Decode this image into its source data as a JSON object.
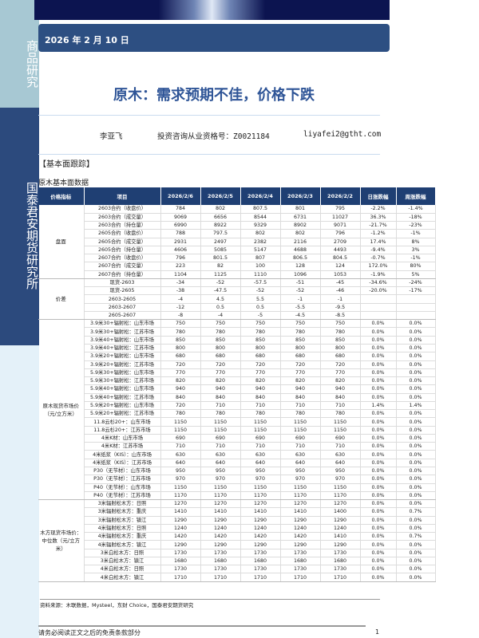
{
  "sidebar": {
    "top_label": "商品研究",
    "institute_label": "国泰君安期货研究所"
  },
  "header": {
    "date": "2026 年 2 月 10 日",
    "title": "原木：需求预期不佳，价格下跌"
  },
  "author": {
    "name": "李亚飞",
    "qualification": "投资咨询从业资格号：Z0021184",
    "email": "liyafei2@gtht.com"
  },
  "section_title": "【基本面跟踪】",
  "table_title": "原木基本面数据",
  "colors": {
    "header_bg": "#1f3f73",
    "title": "#2f5597",
    "sidebar": "#2c4a7d"
  },
  "table": {
    "headers": [
      "价格指标",
      "项目",
      "2026/2/6",
      "2026/2/5",
      "2026/2/4",
      "2026/2/3",
      "2026/2/2",
      "日涨跌幅",
      "周涨跌幅"
    ],
    "groups": [
      {
        "category": "盘面",
        "rows": [
          [
            "2603合约（收盘价）",
            "784",
            "802",
            "807.5",
            "801",
            "795",
            "-2.2%",
            "-1.4%"
          ],
          [
            "2603合约（成交量）",
            "9069",
            "6656",
            "8544",
            "6731",
            "11027",
            "36.3%",
            "-18%"
          ],
          [
            "2603合约（持仓量）",
            "6990",
            "8922",
            "9329",
            "8902",
            "9071",
            "-21.7%",
            "-23%"
          ],
          [
            "2605合约（收盘价）",
            "788",
            "797.5",
            "802",
            "802",
            "796",
            "-1.2%",
            "-1%"
          ],
          [
            "2605合约（成交量）",
            "2931",
            "2497",
            "2382",
            "2116",
            "2709",
            "17.4%",
            "8%"
          ],
          [
            "2605合约（持仓量）",
            "4606",
            "5085",
            "5147",
            "4688",
            "4493",
            "-9.4%",
            "3%"
          ],
          [
            "2607合约（收盘价）",
            "796",
            "801.5",
            "807",
            "806.5",
            "804.5",
            "-0.7%",
            "-1%"
          ],
          [
            "2607合约（成交量）",
            "223",
            "82",
            "100",
            "128",
            "124",
            "172.0%",
            "80%"
          ],
          [
            "2607合约（持仓量）",
            "1104",
            "1125",
            "1110",
            "1096",
            "1053",
            "-1.9%",
            "5%"
          ]
        ]
      },
      {
        "category": "价差",
        "rows": [
          [
            "现货-2603",
            "-34",
            "-52",
            "-57.5",
            "-51",
            "-45",
            "-34.6%",
            "-24%"
          ],
          [
            "现货-2605",
            "-38",
            "-47.5",
            "-52",
            "-52",
            "-46",
            "-20.0%",
            "-17%"
          ],
          [
            "2603-2605",
            "-4",
            "4.5",
            "5.5",
            "-1",
            "-1",
            "",
            ""
          ],
          [
            "2603-2607",
            "-12",
            "0.5",
            "0.5",
            "-5.5",
            "-9.5",
            "",
            ""
          ],
          [
            "2605-2607",
            "-8",
            "-4",
            "-5",
            "-4.5",
            "-8.5",
            "",
            ""
          ]
        ]
      },
      {
        "category": "原木现货市场价（元/立方米）",
        "rows": [
          [
            "3.9米30+辐射松：山东市场",
            "750",
            "750",
            "750",
            "750",
            "750",
            "0.0%",
            "0.0%"
          ],
          [
            "3.9米30+辐射松：江苏市场",
            "780",
            "780",
            "780",
            "780",
            "780",
            "0.0%",
            "0.0%"
          ],
          [
            "3.9米40+辐射松：山东市场",
            "850",
            "850",
            "850",
            "850",
            "850",
            "0.0%",
            "0.0%"
          ],
          [
            "3.9米40+辐射松：江苏市场",
            "800",
            "800",
            "800",
            "800",
            "800",
            "0.0%",
            "0.0%"
          ],
          [
            "3.9米20+辐射松：山东市场",
            "680",
            "680",
            "680",
            "680",
            "680",
            "0.0%",
            "0.0%"
          ],
          [
            "3.9米20+辐射松：江苏市场",
            "720",
            "720",
            "720",
            "720",
            "720",
            "0.0%",
            "0.0%"
          ],
          [
            "5.9米30+辐射松：山东市场",
            "770",
            "770",
            "770",
            "770",
            "770",
            "0.0%",
            "0.0%"
          ],
          [
            "5.9米30+辐射松：江苏市场",
            "820",
            "820",
            "820",
            "820",
            "820",
            "0.0%",
            "0.0%"
          ],
          [
            "5.9米40+辐射松：山东市场",
            "940",
            "940",
            "940",
            "940",
            "940",
            "0.0%",
            "0.0%"
          ],
          [
            "5.9米40+辐射松：江苏市场",
            "840",
            "840",
            "840",
            "840",
            "840",
            "0.0%",
            "0.0%"
          ],
          [
            "5.9米20+辐射松：山东市场",
            "720",
            "710",
            "710",
            "710",
            "710",
            "1.4%",
            "1.4%"
          ],
          [
            "5.9米20+辐射松：江苏市场",
            "780",
            "780",
            "780",
            "780",
            "780",
            "0.0%",
            "0.0%"
          ],
          [
            "11.8云杉20+：山东市场",
            "1150",
            "1150",
            "1150",
            "1150",
            "1150",
            "0.0%",
            "0.0%"
          ],
          [
            "11.8云杉20+：江苏市场",
            "1150",
            "1150",
            "1150",
            "1150",
            "1150",
            "0.0%",
            "0.0%"
          ],
          [
            "4米K材：山东市场",
            "690",
            "690",
            "690",
            "690",
            "690",
            "0.0%",
            "0.0%"
          ],
          [
            "4米K材：江苏市场",
            "710",
            "710",
            "710",
            "710",
            "710",
            "0.0%",
            "0.0%"
          ],
          [
            "4米纸浆（KIS）：山东市场",
            "630",
            "630",
            "630",
            "630",
            "630",
            "0.0%",
            "0.0%"
          ],
          [
            "4米纸浆（KIS）：江苏市场",
            "640",
            "640",
            "640",
            "640",
            "640",
            "0.0%",
            "0.0%"
          ],
          [
            "P30（无节材）：山东市场",
            "950",
            "950",
            "950",
            "950",
            "950",
            "0.0%",
            "0.0%"
          ],
          [
            "P30（无节材）：江苏市场",
            "970",
            "970",
            "970",
            "970",
            "970",
            "0.0%",
            "0.0%"
          ],
          [
            "P40（无节材）：山东市场",
            "1150",
            "1150",
            "1150",
            "1150",
            "1150",
            "0.0%",
            "0.0%"
          ],
          [
            "P40（无节材）：江苏市场",
            "1170",
            "1170",
            "1170",
            "1170",
            "1170",
            "0.0%",
            "0.0%"
          ]
        ]
      },
      {
        "category": "木方现货市场价：中位数（元/立方米）",
        "rows": [
          [
            "3米辐射松木方：日照",
            "1270",
            "1270",
            "1270",
            "1270",
            "1270",
            "0.0%",
            "0.0%"
          ],
          [
            "3米辐射松木方：重庆",
            "1410",
            "1410",
            "1410",
            "1410",
            "1400",
            "0.0%",
            "0.7%"
          ],
          [
            "3米辐射松木方：镇江",
            "1290",
            "1290",
            "1290",
            "1290",
            "1290",
            "0.0%",
            "0.0%"
          ],
          [
            "4米辐射松木方：日照",
            "1240",
            "1240",
            "1240",
            "1240",
            "1240",
            "0.0%",
            "0.0%"
          ],
          [
            "4米辐射松木方：重庆",
            "1420",
            "1420",
            "1420",
            "1420",
            "1410",
            "0.0%",
            "0.7%"
          ],
          [
            "4米辐射松木方：镇江",
            "1290",
            "1290",
            "1290",
            "1290",
            "1290",
            "0.0%",
            "0.0%"
          ],
          [
            "3米白松木方：日照",
            "1730",
            "1730",
            "1730",
            "1730",
            "1730",
            "0.0%",
            "0.0%"
          ],
          [
            "3米白松木方：镇江",
            "1680",
            "1680",
            "1680",
            "1680",
            "1680",
            "0.0%",
            "0.0%"
          ],
          [
            "4米白松木方：日照",
            "1730",
            "1730",
            "1730",
            "1730",
            "1730",
            "0.0%",
            "0.0%"
          ],
          [
            "4米白松木方：镇江",
            "1710",
            "1710",
            "1710",
            "1710",
            "1710",
            "0.0%",
            "0.0%"
          ]
        ]
      }
    ]
  },
  "source": "资料来源：木联数据，Mysteel，东财 Choice，国泰君安期货研究",
  "footer": {
    "disclaimer": "请务必阅读正文之后的免责条款部分",
    "page": "1"
  }
}
